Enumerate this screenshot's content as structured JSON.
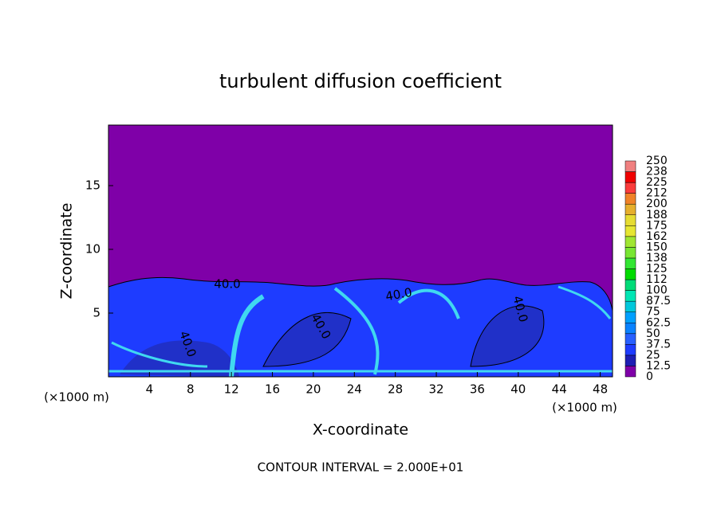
{
  "chart_data": {
    "type": "contour",
    "title": "turbulent diffusion coefficient",
    "x_label": "X-coordinate",
    "y_label": "Z-coordinate",
    "x_unit": "(×1000 m)",
    "x_unit_right": "(×1000 m)",
    "footer": "CONTOUR INTERVAL = 2.000E+01",
    "xlim": [
      0,
      49.2
    ],
    "ylim": [
      0,
      19.75
    ],
    "xticks": [
      4,
      8,
      12,
      16,
      20,
      24,
      28,
      32,
      36,
      40,
      44,
      48
    ],
    "yticks": [
      5,
      10,
      15
    ],
    "contour_labels": [
      {
        "value": 40,
        "label": "40.0"
      },
      {
        "value": 40,
        "label": "40.0"
      },
      {
        "value": 40,
        "label": "40.0"
      },
      {
        "value": 40,
        "label": "40.0"
      },
      {
        "value": 40,
        "label": "40.0"
      }
    ],
    "colorbar": {
      "levels": [
        0,
        12.5,
        25,
        37.5,
        50,
        62.5,
        75,
        87.5,
        100,
        112,
        125,
        138,
        150,
        162,
        175,
        188,
        200,
        212,
        225,
        238,
        250
      ],
      "colors": [
        "#7f00a8",
        "#1e1eb4",
        "#1e3cff",
        "#2860ff",
        "#0a82ff",
        "#00a0ff",
        "#00c8dc",
        "#00e6b4",
        "#00dc78",
        "#00dc00",
        "#32e632",
        "#78e632",
        "#a0e632",
        "#e6e632",
        "#e6dc32",
        "#e6af2d",
        "#f08228",
        "#fa3c3c",
        "#f00000",
        "#f08080"
      ]
    }
  }
}
